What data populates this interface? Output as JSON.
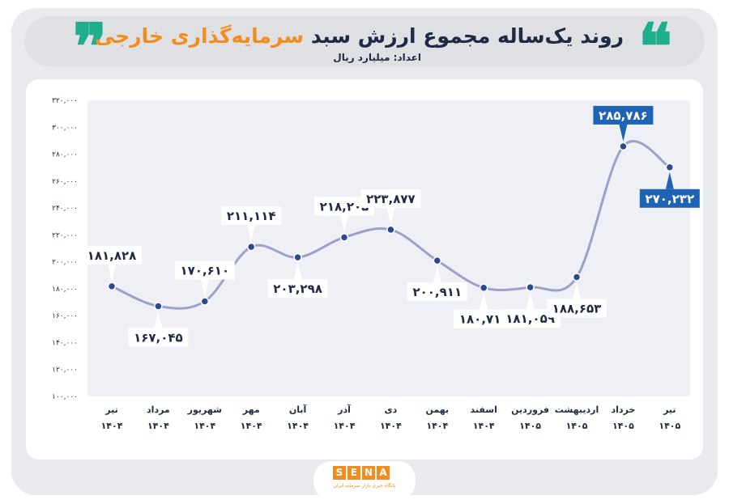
{
  "header": {
    "title_main": "روند یک‌ساله مجموع ارزش سبد ",
    "title_highlight": "سرمایه‌گذاری خارجی",
    "subtitle": "اعداد: میلیارد ریال",
    "quote_open": "❝",
    "quote_close": "❞"
  },
  "colors": {
    "navy": "#1f2a44",
    "accent_orange": "#f28c1e",
    "accent_green": "#1fae8c",
    "line": "#9aa3c7",
    "point": "#2e4a8f",
    "label_highlight": "#1f63b5",
    "plot_bg": "#eef0f6"
  },
  "logo": {
    "letters": [
      "S",
      "E",
      "N",
      "A"
    ],
    "tagline": "پایگاه خبری بازار سرمایه ایران"
  },
  "chart_data": {
    "type": "line",
    "title": "روند یک‌ساله مجموع ارزش سبد سرمایه‌گذاری خارجی",
    "ylabel": "",
    "xlabel": "",
    "ylim": [
      100000,
      320000
    ],
    "grid": false,
    "categories": [
      {
        "month": "تیر",
        "year": "۱۴۰۴"
      },
      {
        "month": "مرداد",
        "year": "۱۴۰۴"
      },
      {
        "month": "شهریور",
        "year": "۱۴۰۴"
      },
      {
        "month": "مهر",
        "year": "۱۴۰۴"
      },
      {
        "month": "آبان",
        "year": "۱۴۰۴"
      },
      {
        "month": "آذر",
        "year": "۱۴۰۴"
      },
      {
        "month": "دی",
        "year": "۱۴۰۴"
      },
      {
        "month": "بهمن",
        "year": "۱۴۰۴"
      },
      {
        "month": "اسفند",
        "year": "۱۴۰۴"
      },
      {
        "month": "فروردین",
        "year": "۱۴۰۵"
      },
      {
        "month": "اردیبهشت",
        "year": "۱۴۰۵"
      },
      {
        "month": "خرداد",
        "year": "۱۴۰۵"
      },
      {
        "month": "تیر",
        "year": "۱۴۰۵"
      }
    ],
    "values": [
      181828,
      167045,
      170610,
      211114,
      203298,
      218205,
      223877,
      200911,
      180715,
      181059,
      188653,
      285786,
      270232
    ],
    "value_labels": [
      "۱۸۱,۸۲۸",
      "۱۶۷,۰۴۵",
      "۱۷۰,۶۱۰",
      "۲۱۱,۱۱۴",
      "۲۰۳,۲۹۸",
      "۲۱۸,۲۰۵",
      "۲۲۳,۸۷۷",
      "۲۰۰,۹۱۱",
      "۱۸۰,۷۱۵",
      "۱۸۱,۰۵۹",
      "۱۸۸,۶۵۳",
      "۲۸۵,۷۸۶",
      "۲۷۰,۲۳۲"
    ],
    "label_side": [
      "above",
      "below",
      "above",
      "above",
      "below",
      "above",
      "above",
      "below",
      "below",
      "below",
      "below",
      "above",
      "below"
    ],
    "highlighted": [
      false,
      false,
      false,
      false,
      false,
      false,
      false,
      false,
      false,
      false,
      false,
      true,
      true
    ],
    "yticks": [
      {
        "value": 320000,
        "label": "۳۲۰,۰۰۰"
      },
      {
        "value": 300000,
        "label": "۳۰۰,۰۰۰"
      },
      {
        "value": 280000,
        "label": "۲۸۰,۰۰۰"
      },
      {
        "value": 260000,
        "label": "۲۶۰,۰۰۰"
      },
      {
        "value": 240000,
        "label": "۲۴۰,۰۰۰"
      },
      {
        "value": 220000,
        "label": "۲۲۰,۰۰۰"
      },
      {
        "value": 200000,
        "label": "۲۰۰,۰۰۰"
      },
      {
        "value": 180000,
        "label": "۱۸۰,۰۰۰"
      },
      {
        "value": 160000,
        "label": "۱۶۰,۰۰۰"
      },
      {
        "value": 140000,
        "label": "۱۴۰,۰۰۰"
      },
      {
        "value": 120000,
        "label": "۱۲۰,۰۰۰"
      },
      {
        "value": 100000,
        "label": "۱۰۰,۰۰۰"
      }
    ]
  }
}
